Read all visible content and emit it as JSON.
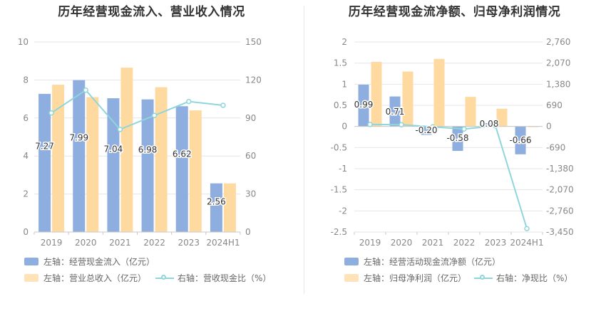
{
  "colors": {
    "bar_blue": "#8eaedf",
    "bar_orange": "#ffdaa0",
    "line_cyan": "#8fd6db",
    "grid": "#e6e6e6",
    "axis_text": "#888888"
  },
  "charts": [
    {
      "title": "历年经营现金流入、营业收入情况",
      "legend": {
        "series1": "左轴：经营现金流入（亿元）",
        "series2": "左轴：营业总收入（亿元）",
        "series3": "右轴：营收现金比（%）"
      }
    },
    {
      "title": "历年经营现金流净额、归母净利润情况",
      "legend": {
        "series1": "左轴：经营活动现金流净额（亿元）",
        "series2": "左轴：归母净利润（亿元）",
        "series3": "右轴：净现比（%）"
      }
    }
  ],
  "chart_data": [
    {
      "type": "bar",
      "categories": [
        "2019",
        "2020",
        "2021",
        "2022",
        "2023",
        "2024H1"
      ],
      "left_axis": {
        "ylim": [
          0,
          10
        ],
        "ticks": [
          "0",
          "2",
          "4",
          "6",
          "8",
          "10"
        ]
      },
      "right_axis": {
        "ylim": [
          0,
          150
        ],
        "ticks": [
          "0",
          "30",
          "60",
          "90",
          "120",
          "150"
        ]
      },
      "series": [
        {
          "name": "左轴：经营现金流入（亿元）",
          "axis": "left",
          "type": "bar",
          "values": [
            7.27,
            7.99,
            7.04,
            6.98,
            6.62,
            2.56
          ],
          "labels": [
            "7.27",
            "7.99",
            "7.04",
            "6.98",
            "6.62",
            "2.56"
          ]
        },
        {
          "name": "左轴：营业总收入（亿元）",
          "axis": "left",
          "type": "bar",
          "values": [
            7.75,
            7.1,
            8.65,
            7.62,
            6.4,
            2.56
          ]
        },
        {
          "name": "右轴：营收现金比（%）",
          "axis": "right",
          "type": "line",
          "values": [
            94,
            112,
            81,
            92,
            103,
            100
          ]
        }
      ]
    },
    {
      "type": "bar",
      "categories": [
        "2019",
        "2020",
        "2021",
        "2022",
        "2023",
        "2024H1"
      ],
      "left_axis": {
        "ylim": [
          -2.5,
          2
        ],
        "ticks": [
          "-2.5",
          "-2",
          "-1.5",
          "-1",
          "-0.5",
          "0",
          "0.5",
          "1",
          "1.5",
          "2"
        ]
      },
      "right_axis": {
        "ylim": [
          -3450,
          2760
        ],
        "ticks": [
          "-3,450",
          "-2,760",
          "-2,070",
          "-1,380",
          "-690",
          "0",
          "690",
          "1,380",
          "2,070",
          "2,760"
        ]
      },
      "series": [
        {
          "name": "左轴：经营活动现金流净额（亿元）",
          "axis": "left",
          "type": "bar",
          "values": [
            0.99,
            0.71,
            -0.2,
            -0.58,
            0.08,
            -0.66
          ],
          "labels": [
            "0.99",
            "0.71",
            "-0.20",
            "-0.58",
            "0.08",
            "-0.66"
          ]
        },
        {
          "name": "左轴：归母净利润（亿元）",
          "axis": "left",
          "type": "bar",
          "values": [
            1.53,
            1.3,
            1.6,
            0.7,
            0.42,
            -0.01
          ]
        },
        {
          "name": "右轴：净现比（%）",
          "axis": "right",
          "type": "line",
          "values": [
            65,
            55,
            -13,
            -83,
            19,
            -3340
          ]
        }
      ]
    }
  ]
}
